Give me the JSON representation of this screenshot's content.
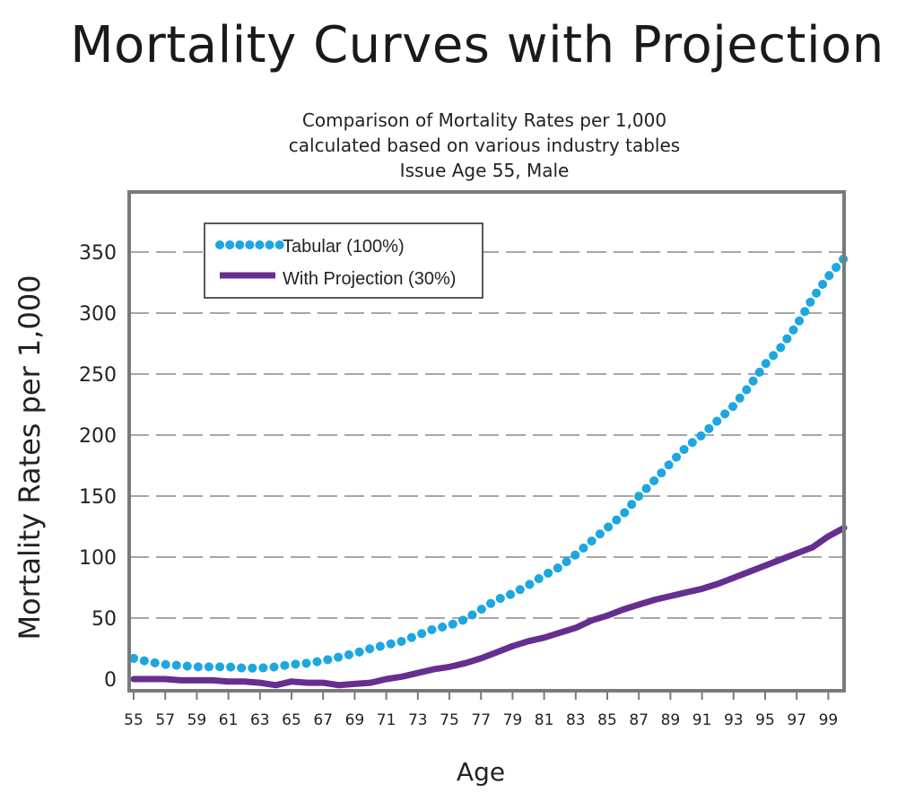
{
  "chart_data": {
    "type": "line",
    "title": "Mortality Curves with Projection",
    "subtitle": [
      "Comparison of Mortality Rates per 1,000",
      "calculated based on various industry tables",
      "Issue Age 55, Male"
    ],
    "xlabel": "Age",
    "ylabel": "Mortality Rates per 1,000",
    "ylim": [
      -10,
      395
    ],
    "xlim": [
      55,
      100
    ],
    "yticks": [
      0,
      50,
      100,
      150,
      200,
      250,
      300,
      350
    ],
    "xticks": [
      "55",
      "57",
      "59",
      "61",
      "63",
      "65",
      "67",
      "69",
      "71",
      "73",
      "75",
      "77",
      "79",
      "81",
      "83",
      "85",
      "87",
      "89",
      "91",
      "93",
      "95",
      "97",
      "99"
    ],
    "grid": "horizontal dashed",
    "legend_position": "top-left",
    "x": [
      55,
      56,
      57,
      58,
      59,
      60,
      61,
      62,
      63,
      64,
      65,
      66,
      67,
      68,
      69,
      70,
      71,
      72,
      73,
      74,
      75,
      76,
      77,
      78,
      79,
      80,
      81,
      82,
      83,
      84,
      85,
      86,
      87,
      88,
      89,
      90,
      91,
      92,
      93,
      94,
      95,
      96,
      97,
      98,
      99,
      100
    ],
    "series": [
      {
        "name": "Tabular (100%)",
        "color": "#1ca7e0",
        "style": "dotted",
        "values": [
          17,
          14,
          12,
          11,
          10,
          10,
          10,
          9,
          9,
          10,
          12,
          13,
          15,
          18,
          21,
          25,
          28,
          31,
          36,
          41,
          44,
          49,
          57,
          65,
          70,
          77,
          85,
          92,
          102,
          113,
          124,
          135,
          150,
          163,
          177,
          190,
          200,
          212,
          224,
          240,
          258,
          272,
          290,
          312,
          330,
          345
        ]
      },
      {
        "name": "With Projection (30%)",
        "color": "#662e8f",
        "style": "solid",
        "values": [
          0,
          0,
          0,
          -1,
          -1,
          -1,
          -2,
          -2,
          -3,
          -5,
          -2,
          -3,
          -3,
          -5,
          -4,
          -3,
          0,
          2,
          5,
          8,
          10,
          13,
          17,
          22,
          27,
          31,
          34,
          38,
          42,
          48,
          52,
          57,
          61,
          65,
          68,
          71,
          74,
          78,
          83,
          88,
          93,
          98,
          103,
          108,
          117,
          124
        ]
      }
    ]
  }
}
